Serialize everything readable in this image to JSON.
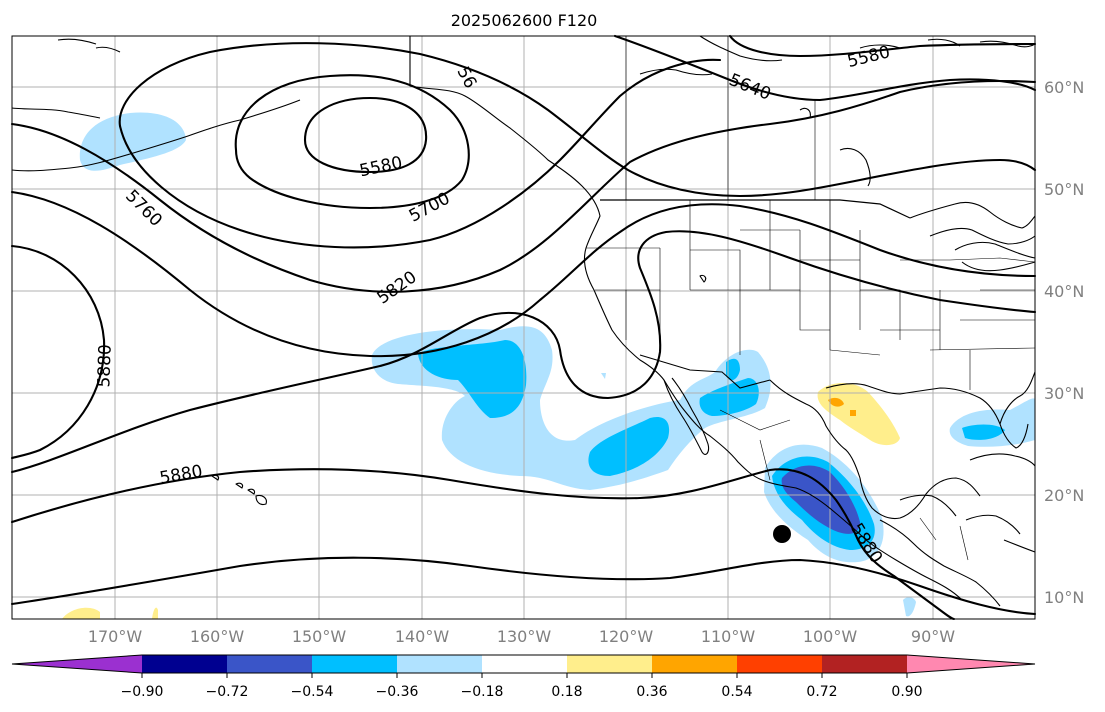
{
  "title": "2025062600 F120",
  "lat_labels": [
    "60°N",
    "50°N",
    "40°N",
    "30°N",
    "20°N",
    "10°N"
  ],
  "lon_labels": [
    "170°W",
    "160°W",
    "150°W",
    "140°W",
    "130°W",
    "120°W",
    "110°W",
    "100°W",
    "90°W"
  ],
  "contour_labels": [
    "5580",
    "5640",
    "5580",
    "56",
    "5700",
    "5760",
    "5820",
    "5880",
    "5880",
    "5880"
  ],
  "colorbar": {
    "labels": [
      "−0.90",
      "−0.72",
      "−0.54",
      "−0.36",
      "−0.18",
      "0.18",
      "0.36",
      "0.54",
      "0.72",
      "0.90"
    ],
    "colors": [
      "#9b30d0",
      "#000090",
      "#3a55c8",
      "#00bfff",
      "#b0e2ff",
      "#ffffff",
      "#ffee8c",
      "#ffa500",
      "#ff4000",
      "#b22222",
      "#ff88b0"
    ]
  },
  "colors": {
    "light_blue": "#b0e2ff",
    "mid_blue": "#00bfff",
    "royal_blue": "#3a55c8",
    "light_yellow": "#ffee8c",
    "orange": "#ffa500"
  },
  "marker": "filled-circle"
}
